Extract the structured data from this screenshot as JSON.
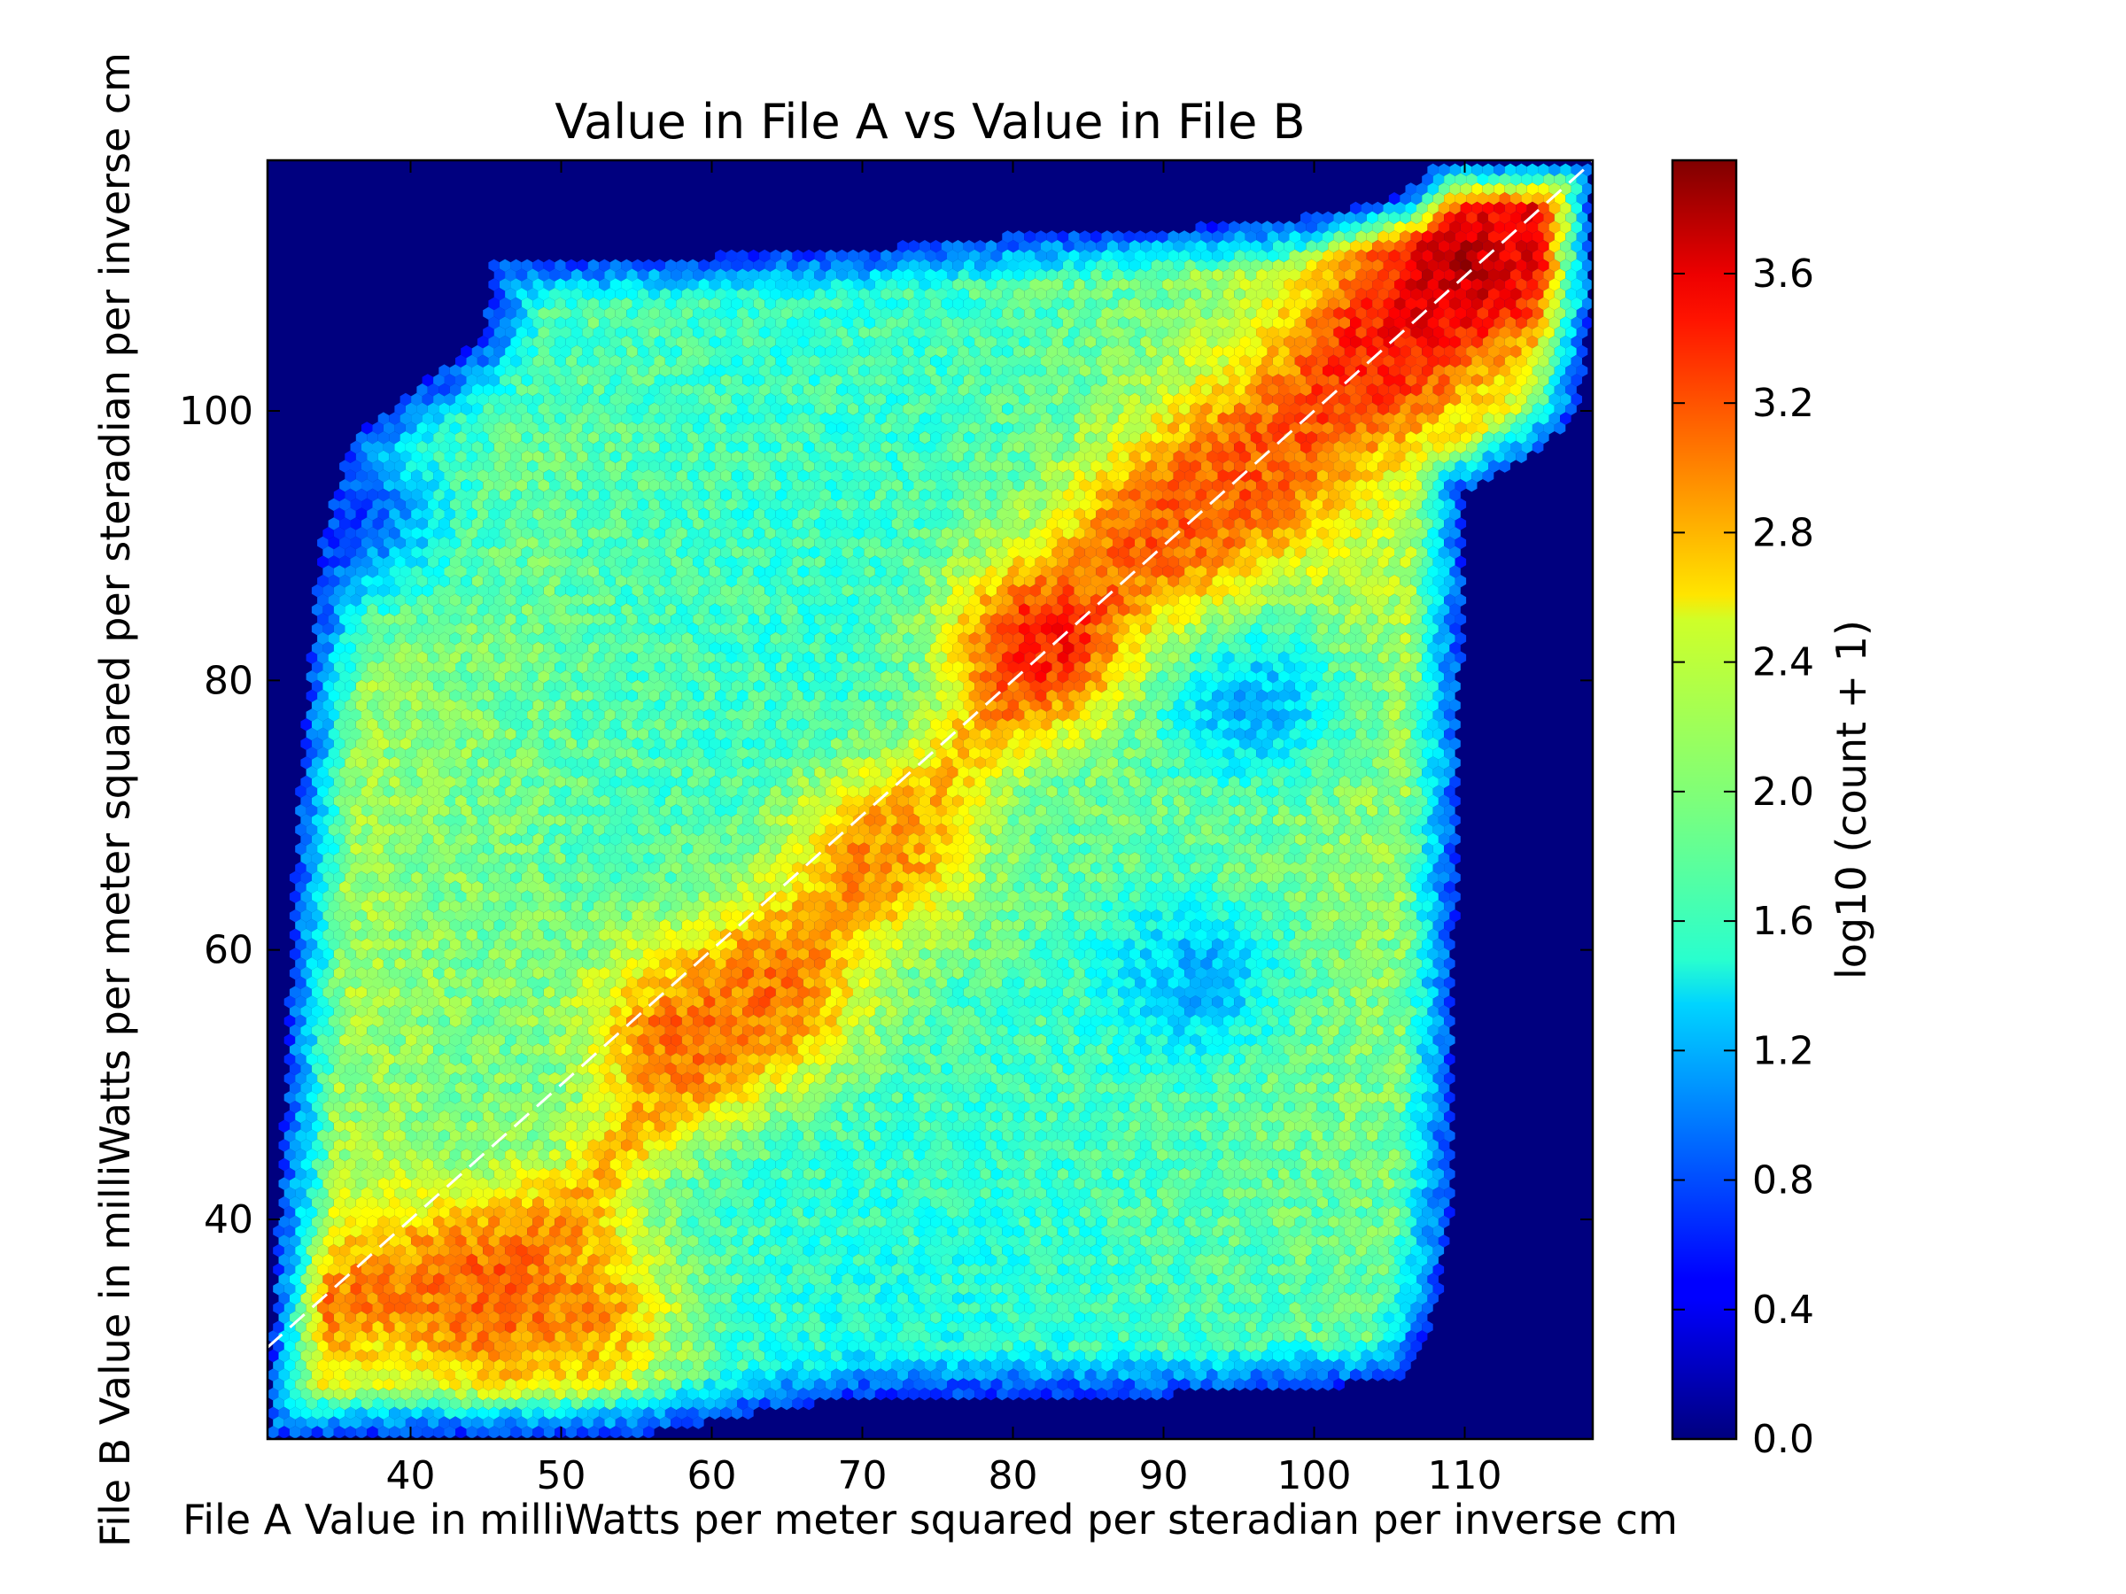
{
  "chart_data": {
    "type": "heatmap",
    "subtype": "hexbin density",
    "title": "Value in File A vs Value in File B",
    "xlabel": "File A Value in milliWatts per meter squared per steradian per inverse cm",
    "ylabel": "File B Value in milliWatts per meter squared per steradian per inverse cm",
    "xlim": [
      30.5,
      118.5
    ],
    "ylim": [
      23.7,
      118.6
    ],
    "x_ticks": [
      40,
      50,
      60,
      70,
      80,
      90,
      100,
      110
    ],
    "y_ticks": [
      40,
      60,
      80,
      100
    ],
    "colormap": "jet",
    "background_color": "#00007f",
    "colorbar": {
      "label": "log10 (count + 1)",
      "range": [
        0.0,
        3.95
      ],
      "ticks": [
        0.0,
        0.4,
        0.8,
        1.2,
        1.6,
        2.0,
        2.4,
        2.8,
        3.2,
        3.6
      ],
      "tick_labels": [
        "0.0",
        "0.4",
        "0.8",
        "1.2",
        "1.6",
        "2.0",
        "2.4",
        "2.8",
        "3.2",
        "3.6"
      ]
    },
    "reference_line": {
      "style": "dashed",
      "color": "#ffffff",
      "from": [
        30.5,
        30.5
      ],
      "to": [
        118.5,
        118.5
      ]
    },
    "data_region": {
      "description_free": true,
      "left_edge": [
        [
          30.5,
          24
        ],
        [
          31.5,
          45
        ],
        [
          32.5,
          70
        ],
        [
          34,
          90
        ],
        [
          36,
          98
        ],
        [
          42,
          103
        ],
        [
          45,
          106
        ],
        [
          45.5,
          111
        ],
        [
          60,
          111.5
        ],
        [
          70,
          112
        ],
        [
          80,
          113
        ],
        [
          90,
          113.5
        ],
        [
          98,
          114
        ],
        [
          106,
          116
        ],
        [
          108,
          118.5
        ]
      ],
      "right_edge": [
        [
          118.5,
          118.5
        ],
        [
          118.5,
          108
        ],
        [
          117.5,
          100
        ],
        [
          115,
          97
        ],
        [
          110,
          94
        ],
        [
          109.5,
          70
        ],
        [
          109,
          40
        ],
        [
          108,
          33
        ],
        [
          106,
          28
        ],
        [
          90,
          27
        ],
        [
          70,
          27
        ],
        [
          55,
          24
        ],
        [
          30.5,
          24
        ]
      ]
    },
    "ridge": [
      [
        33,
        33
      ],
      [
        38,
        35
      ],
      [
        45,
        36
      ],
      [
        50,
        39
      ],
      [
        55,
        47
      ],
      [
        60,
        53
      ],
      [
        65,
        59
      ],
      [
        70,
        66
      ],
      [
        75,
        72
      ],
      [
        80,
        79
      ],
      [
        83,
        83
      ],
      [
        88,
        89
      ],
      [
        92,
        92
      ],
      [
        96,
        96
      ],
      [
        100,
        100
      ],
      [
        104,
        104
      ],
      [
        108,
        108
      ],
      [
        111,
        111
      ],
      [
        114,
        115
      ],
      [
        117,
        117.5
      ]
    ],
    "hotspots": [
      {
        "x": 46,
        "y": 34,
        "value": 3.1
      },
      {
        "x": 51,
        "y": 33,
        "value": 2.9
      },
      {
        "x": 58,
        "y": 54,
        "value": 3.0
      },
      {
        "x": 64,
        "y": 57,
        "value": 3.0
      },
      {
        "x": 71,
        "y": 67,
        "value": 2.9
      },
      {
        "x": 82,
        "y": 83,
        "value": 3.4
      },
      {
        "x": 90,
        "y": 91,
        "value": 3.1
      },
      {
        "x": 96,
        "y": 96,
        "value": 3.1
      },
      {
        "x": 104,
        "y": 104,
        "value": 3.3
      },
      {
        "x": 110,
        "y": 111,
        "value": 3.7
      },
      {
        "x": 114,
        "y": 114,
        "value": 3.5
      }
    ],
    "sparse_zones": [
      {
        "x": 92,
        "y": 58,
        "value": 1.2
      },
      {
        "x": 96,
        "y": 78,
        "value": 1.2
      },
      {
        "x": 40,
        "y": 106,
        "value": 0.9
      },
      {
        "x": 36,
        "y": 92,
        "value": 0.8
      }
    ]
  }
}
